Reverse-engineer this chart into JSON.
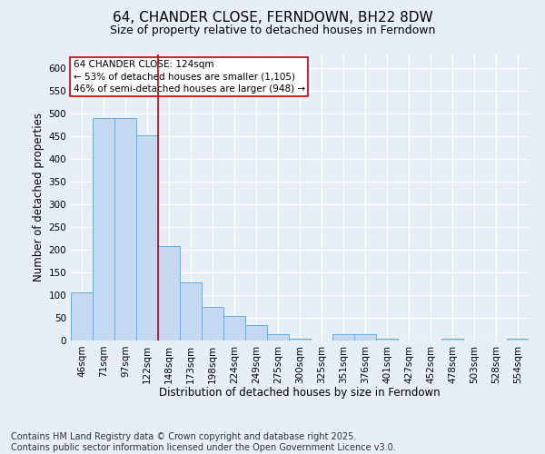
{
  "title": "64, CHANDER CLOSE, FERNDOWN, BH22 8DW",
  "subtitle": "Size of property relative to detached houses in Ferndown",
  "xlabel": "Distribution of detached houses by size in Ferndown",
  "ylabel": "Number of detached properties",
  "footer_line1": "Contains HM Land Registry data © Crown copyright and database right 2025.",
  "footer_line2": "Contains public sector information licensed under the Open Government Licence v3.0.",
  "categories": [
    "46sqm",
    "71sqm",
    "97sqm",
    "122sqm",
    "148sqm",
    "173sqm",
    "198sqm",
    "224sqm",
    "249sqm",
    "275sqm",
    "300sqm",
    "325sqm",
    "351sqm",
    "376sqm",
    "401sqm",
    "427sqm",
    "452sqm",
    "478sqm",
    "503sqm",
    "528sqm",
    "554sqm"
  ],
  "values": [
    107,
    491,
    491,
    453,
    209,
    128,
    75,
    55,
    35,
    15,
    5,
    0,
    15,
    15,
    5,
    0,
    0,
    5,
    0,
    0,
    5
  ],
  "bar_color": "#c5d8ef",
  "bar_edge_color": "#6baed6",
  "vline_x": 3.5,
  "vline_color": "#cc0000",
  "annotation_text": "64 CHANDER CLOSE: 124sqm\n← 53% of detached houses are smaller (1,105)\n46% of semi-detached houses are larger (948) →",
  "annotation_box_color": "#cc0000",
  "ylim": [
    0,
    630
  ],
  "yticks": [
    0,
    50,
    100,
    150,
    200,
    250,
    300,
    350,
    400,
    450,
    500,
    550,
    600
  ],
  "background_color": "#e8eef6",
  "plot_background": "#e8eef6",
  "title_fontsize": 11,
  "subtitle_fontsize": 9,
  "annotation_fontsize": 7.5,
  "tick_fontsize": 7.5,
  "ylabel_fontsize": 8.5,
  "xlabel_fontsize": 8.5,
  "footer_fontsize": 7
}
